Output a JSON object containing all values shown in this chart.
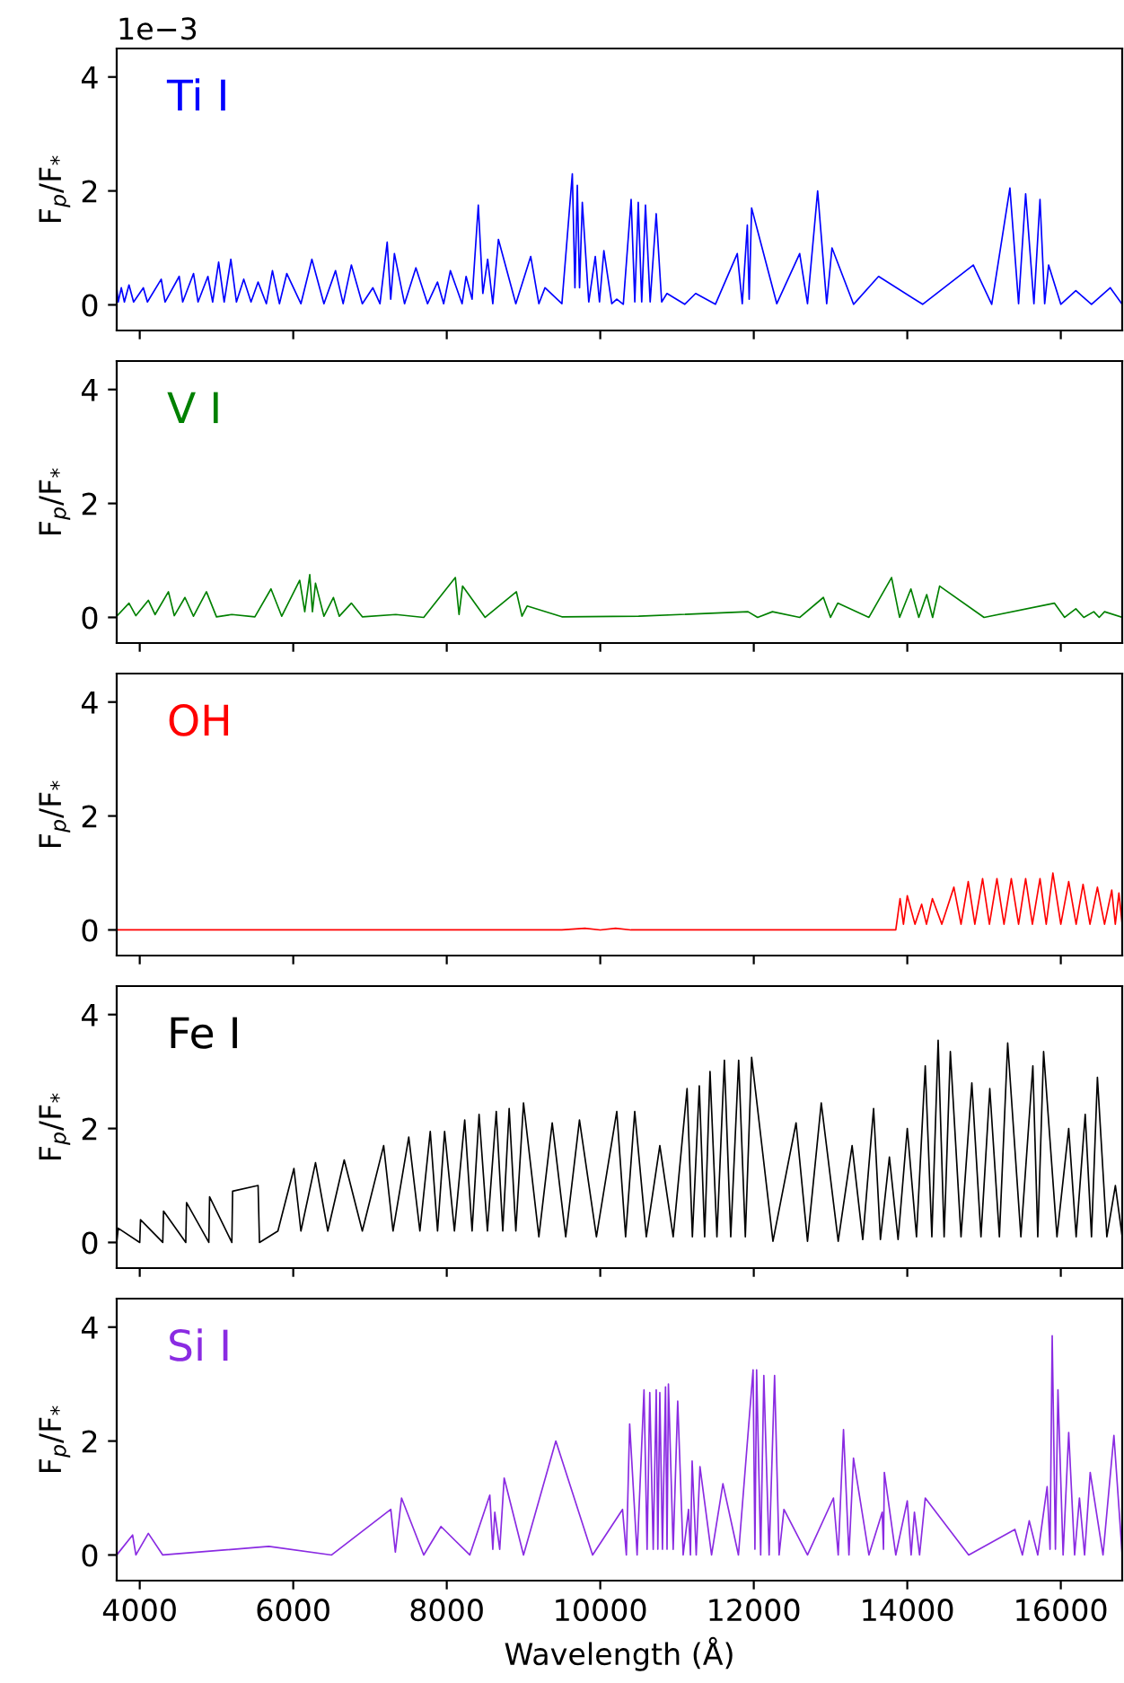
{
  "chart_data": [
    {
      "type": "line",
      "ylabel": "F$_{p}$/F$_{*}$",
      "annotations": [
        "1e−3"
      ],
      "tick_labels": "y",
      "xlim": [
        3700,
        16800
      ],
      "ylim": [
        -0.45,
        4.5
      ],
      "xticks": [
        4000,
        6000,
        8000,
        10000,
        12000,
        14000,
        16000
      ],
      "yticks": [
        0,
        2,
        4
      ],
      "x": [
        3700,
        3720,
        3760,
        3800,
        3860,
        3920,
        4047,
        4100,
        4280,
        4330,
        4514,
        4560,
        4701,
        4760,
        4888,
        4950,
        5028,
        5100,
        5187,
        5260,
        5355,
        5450,
        5542,
        5650,
        5729,
        5820,
        5916,
        6100,
        6243,
        6400,
        6551,
        6650,
        6757,
        6900,
        7037,
        7130,
        7224,
        7270,
        7318,
        7450,
        7598,
        7750,
        7879,
        7960,
        8047,
        8200,
        8252,
        8330,
        8411,
        8470,
        8533,
        8600,
        8673,
        8900,
        9094,
        9200,
        9280,
        9500,
        9636,
        9670,
        9701,
        9730,
        9766,
        9850,
        9935,
        9990,
        10047,
        10150,
        10215,
        10300,
        10402,
        10450,
        10495,
        10540,
        10589,
        10650,
        10729,
        10800,
        10869,
        11100,
        11243,
        11500,
        11785,
        11850,
        11916,
        11940,
        11972,
        12300,
        12598,
        12700,
        12832,
        12950,
        13019,
        13300,
        13626,
        14200,
        14860,
        15100,
        15337,
        15450,
        15542,
        15650,
        15729,
        15790,
        15841,
        16000,
        16196,
        16400,
        16645,
        16800
      ],
      "series": [
        {
          "name": "Ti I",
          "color": "#0000ff",
          "values": [
            0.3,
            0.05,
            0.3,
            0.05,
            0.35,
            0.05,
            0.3,
            0.05,
            0.45,
            0.05,
            0.5,
            0.05,
            0.55,
            0.05,
            0.5,
            0.05,
            0.75,
            0.05,
            0.8,
            0.05,
            0.45,
            0.05,
            0.4,
            0.02,
            0.6,
            0.02,
            0.55,
            0.02,
            0.8,
            0.02,
            0.6,
            0.02,
            0.7,
            0.02,
            0.3,
            0.02,
            1.1,
            0.1,
            0.9,
            0.02,
            0.65,
            0.02,
            0.4,
            0.02,
            0.6,
            0.02,
            0.5,
            0.1,
            1.75,
            0.2,
            0.8,
            0.02,
            1.15,
            0.02,
            0.85,
            0.02,
            0.3,
            0.02,
            2.3,
            0.3,
            2.1,
            0.3,
            1.8,
            0.05,
            0.85,
            0.05,
            0.95,
            0.02,
            0.1,
            0.01,
            1.85,
            0.05,
            1.8,
            0.05,
            1.75,
            0.05,
            1.6,
            0.05,
            0.2,
            0.01,
            0.2,
            0.01,
            0.9,
            0.02,
            1.4,
            0.1,
            1.7,
            0.02,
            0.9,
            0.02,
            2.0,
            0.02,
            1.0,
            0.01,
            0.5,
            0.01,
            0.7,
            0.01,
            2.05,
            0.02,
            1.95,
            0.02,
            1.85,
            0.02,
            0.7,
            0.01,
            0.25,
            0.01,
            0.3,
            0.01
          ]
        }
      ]
    },
    {
      "type": "line",
      "ylabel": "F$_{p}$/F$_{*}$",
      "tick_labels": "y",
      "xlim": [
        3700,
        16800
      ],
      "ylim": [
        -0.45,
        4.5
      ],
      "xticks": [
        4000,
        6000,
        8000,
        10000,
        12000,
        14000,
        16000
      ],
      "yticks": [
        0,
        2,
        4
      ],
      "x": [
        3700,
        3860,
        3950,
        4112,
        4200,
        4374,
        4450,
        4589,
        4700,
        4869,
        5000,
        5200,
        5500,
        5710,
        5850,
        6084,
        6150,
        6215,
        6250,
        6290,
        6400,
        6523,
        6600,
        6757,
        6900,
        7336,
        7700,
        8112,
        8160,
        8206,
        8500,
        8907,
        8980,
        9047,
        9500,
        10500,
        11925,
        12050,
        12243,
        12600,
        12907,
        13000,
        13094,
        13500,
        13795,
        13900,
        14047,
        14150,
        14253,
        14330,
        14421,
        15000,
        15916,
        16050,
        16196,
        16300,
        16430,
        16500,
        16570,
        16800
      ],
      "series": [
        {
          "name": "V I",
          "color": "#008000",
          "values": [
            0.02,
            0.25,
            0.03,
            0.3,
            0.05,
            0.45,
            0.03,
            0.35,
            0.02,
            0.45,
            0.01,
            0.05,
            0.01,
            0.5,
            0.02,
            0.65,
            0.1,
            0.75,
            0.1,
            0.6,
            0.02,
            0.35,
            0.02,
            0.25,
            0.01,
            0.05,
            0.0,
            0.7,
            0.05,
            0.55,
            0.0,
            0.45,
            0.02,
            0.2,
            0.01,
            0.02,
            0.1,
            0.0,
            0.1,
            0.0,
            0.35,
            0.0,
            0.25,
            0.0,
            0.7,
            0.0,
            0.5,
            0.0,
            0.4,
            0.0,
            0.55,
            0.0,
            0.25,
            0.0,
            0.15,
            0.0,
            0.1,
            0.0,
            0.1,
            0.0
          ]
        }
      ]
    },
    {
      "type": "line",
      "ylabel": "F$_{p}$/F$_{*}$",
      "tick_labels": "y",
      "xlim": [
        3700,
        16800
      ],
      "ylim": [
        -0.45,
        4.5
      ],
      "xticks": [
        4000,
        6000,
        8000,
        10000,
        12000,
        14000,
        16000
      ],
      "yticks": [
        0,
        2,
        4
      ],
      "x": [
        3700,
        9500,
        9800,
        10000,
        10200,
        10400,
        11000,
        13850,
        13906,
        13950,
        14000,
        14100,
        14187,
        14250,
        14327,
        14450,
        14607,
        14700,
        14794,
        14880,
        14981,
        15070,
        15168,
        15260,
        15355,
        15450,
        15542,
        15630,
        15729,
        15810,
        15897,
        16000,
        16103,
        16200,
        16290,
        16380,
        16477,
        16570,
        16664,
        16710,
        16757,
        16800
      ],
      "series": [
        {
          "name": "OH",
          "color": "#ff0000",
          "values": [
            0.0,
            0.0,
            0.03,
            0.0,
            0.03,
            0.0,
            0.0,
            0.0,
            0.55,
            0.1,
            0.6,
            0.1,
            0.45,
            0.1,
            0.55,
            0.1,
            0.75,
            0.1,
            0.85,
            0.1,
            0.9,
            0.1,
            0.9,
            0.1,
            0.9,
            0.1,
            0.9,
            0.1,
            0.9,
            0.1,
            1.0,
            0.1,
            0.85,
            0.1,
            0.8,
            0.1,
            0.75,
            0.1,
            0.7,
            0.1,
            0.65,
            0.1
          ]
        }
      ]
    },
    {
      "type": "line",
      "ylabel": "F$_{p}$/F$_{*}$",
      "tick_labels": "y",
      "xlim": [
        3700,
        16800
      ],
      "ylim": [
        -0.45,
        4.5
      ],
      "xticks": [
        4000,
        6000,
        8000,
        10000,
        12000,
        14000,
        16000
      ],
      "yticks": [
        0,
        2,
        4
      ],
      "x": [
        3700,
        3720,
        4000,
        4010,
        4300,
        4310,
        4600,
        4610,
        4900,
        4910,
        5200,
        5210,
        5542,
        5560,
        5800,
        6009,
        6100,
        6290,
        6450,
        6664,
        6900,
        7178,
        7300,
        7505,
        7650,
        7785,
        7880,
        7972,
        8100,
        8234,
        8330,
        8421,
        8530,
        8645,
        8730,
        8813,
        8900,
        9000,
        9200,
        9374,
        9550,
        9729,
        9950,
        10215,
        10330,
        10449,
        10600,
        10776,
        10950,
        11131,
        11200,
        11290,
        11360,
        11430,
        11520,
        11617,
        11700,
        11803,
        11890,
        11972,
        12250,
        12551,
        12700,
        12879,
        13100,
        13281,
        13420,
        13561,
        13650,
        13767,
        13880,
        14000,
        14120,
        14234,
        14320,
        14402,
        14480,
        14561,
        14700,
        14841,
        14960,
        15075,
        15200,
        15308,
        15480,
        15636,
        15700,
        15776,
        15950,
        16103,
        16200,
        16318,
        16400,
        16477,
        16600,
        16711,
        16800
      ],
      "series": [
        {
          "name": "Fe I",
          "color": "#000000",
          "values": [
            0.0,
            0.25,
            0.0,
            0.4,
            0.0,
            0.55,
            0.0,
            0.7,
            0.0,
            0.8,
            0.0,
            0.9,
            1.0,
            0.0,
            0.2,
            1.3,
            0.2,
            1.4,
            0.2,
            1.45,
            0.2,
            1.7,
            0.2,
            1.85,
            0.2,
            1.95,
            0.2,
            1.95,
            0.2,
            2.15,
            0.2,
            2.25,
            0.2,
            2.3,
            0.2,
            2.35,
            0.2,
            2.45,
            0.1,
            2.1,
            0.1,
            2.15,
            0.1,
            2.3,
            0.1,
            2.3,
            0.1,
            1.7,
            0.1,
            2.7,
            0.1,
            2.75,
            0.1,
            3.0,
            0.1,
            3.2,
            0.1,
            3.2,
            0.1,
            3.25,
            0.02,
            2.1,
            0.02,
            2.45,
            0.02,
            1.7,
            0.05,
            2.35,
            0.05,
            1.5,
            0.05,
            2.0,
            0.1,
            3.1,
            0.1,
            3.55,
            0.1,
            3.35,
            0.1,
            2.8,
            0.1,
            2.7,
            0.1,
            3.5,
            0.1,
            3.1,
            0.1,
            3.35,
            0.1,
            2.0,
            0.1,
            2.25,
            0.1,
            2.9,
            0.1,
            1.0,
            0.1
          ]
        }
      ]
    },
    {
      "type": "line",
      "ylabel": "F$_{p}$/F$_{*}$",
      "xlabel": "Wavelength (Å)",
      "xlim": [
        3700,
        16800
      ],
      "ylim": [
        -0.45,
        4.5
      ],
      "xticks": [
        4000,
        6000,
        8000,
        10000,
        12000,
        14000,
        16000
      ],
      "yticks": [
        0,
        2,
        4
      ],
      "x": [
        3700,
        3907,
        3950,
        4112,
        4300,
        5682,
        6500,
        7271,
        7330,
        7411,
        7700,
        7925,
        8300,
        8561,
        8600,
        8626,
        8690,
        8748,
        9000,
        9421,
        9900,
        10290,
        10340,
        10383,
        10480,
        10570,
        10610,
        10645,
        10690,
        10729,
        10750,
        10776,
        10810,
        10850,
        10870,
        10888,
        10950,
        11009,
        11080,
        11150,
        11175,
        11197,
        11250,
        11299,
        11450,
        11598,
        11800,
        11991,
        12015,
        12037,
        12090,
        12131,
        12200,
        12271,
        12330,
        12393,
        12700,
        13038,
        13100,
        13169,
        13240,
        13299,
        13500,
        13673,
        13690,
        13701,
        13850,
        14000,
        14050,
        14093,
        14160,
        14234,
        14800,
        15402,
        15500,
        15589,
        15700,
        15822,
        15860,
        15888,
        15930,
        15963,
        16030,
        16103,
        16180,
        16243,
        16310,
        16383,
        16550,
        16692,
        16800
      ],
      "series": [
        {
          "name": "Si I",
          "color": "#8a2be2",
          "values": [
            0.0,
            0.35,
            0.0,
            0.38,
            0.0,
            0.15,
            0.0,
            0.8,
            0.05,
            1.0,
            0.0,
            0.5,
            0.0,
            1.05,
            0.1,
            0.75,
            0.1,
            1.35,
            0.0,
            2.0,
            0.0,
            0.8,
            0.0,
            2.3,
            0.0,
            2.9,
            0.1,
            2.85,
            0.1,
            2.9,
            0.1,
            2.85,
            0.1,
            2.95,
            0.1,
            3.0,
            0.1,
            2.7,
            0.0,
            0.8,
            0.0,
            1.65,
            0.0,
            1.55,
            0.0,
            1.25,
            0.0,
            3.25,
            0.1,
            3.25,
            0.0,
            3.15,
            0.0,
            3.15,
            0.0,
            0.8,
            0.0,
            1.0,
            0.0,
            2.2,
            0.0,
            1.7,
            0.0,
            0.75,
            0.1,
            1.45,
            0.0,
            0.95,
            0.0,
            0.75,
            0.0,
            1.0,
            0.0,
            0.45,
            0.0,
            0.6,
            0.0,
            1.2,
            0.1,
            3.85,
            0.1,
            2.9,
            0.0,
            2.15,
            0.0,
            1.0,
            0.0,
            1.45,
            0.0,
            2.1,
            0.0
          ]
        }
      ]
    }
  ]
}
